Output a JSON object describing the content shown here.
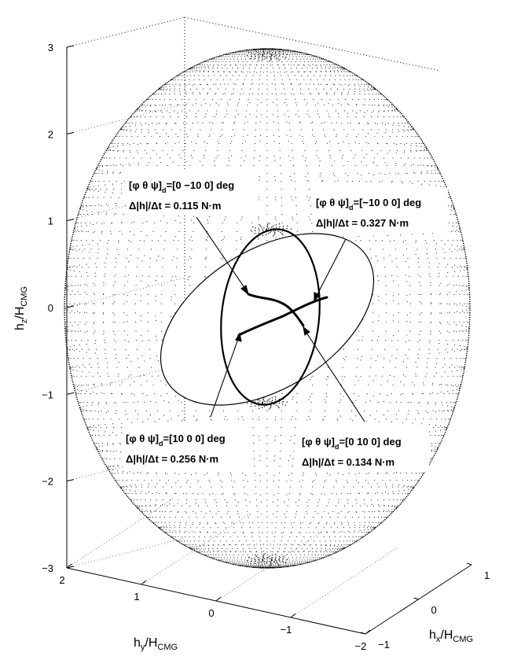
{
  "chart_data": {
    "type": "scatter",
    "projection": "3d",
    "grid": true,
    "axes": {
      "x": {
        "label": "h_x/H_CMG",
        "ticks": [
          "1",
          "0",
          "−1"
        ],
        "range": [
          -1,
          1
        ]
      },
      "y": {
        "label": "h_y/H_CMG",
        "ticks": [
          "2",
          "1",
          "0",
          "−1",
          "−2"
        ],
        "range": [
          -2,
          2
        ]
      },
      "z": {
        "label": "h_z/H_CMG",
        "ticks": [
          "3",
          "2",
          "1",
          "0",
          "−1",
          "−2",
          "−3"
        ],
        "range": [
          -3,
          3
        ]
      }
    },
    "surface": {
      "kind": "CMG angular momentum envelope (dotted ellipsoid with internal singular surface)",
      "hz_extent": [
        -3,
        3
      ],
      "hy_extent": [
        -2,
        2
      ],
      "hx_extent": [
        -1,
        1
      ]
    },
    "trajectories": [
      {
        "d_prefix": "[φ θ ψ]",
        "d_sub": "d",
        "d_value": "=[0 −10 0] deg",
        "rate_prefix": "Δ|h|/Δt = ",
        "rate_value": "0.115 N·m"
      },
      {
        "d_prefix": "[φ θ ψ]",
        "d_sub": "d",
        "d_value": "=[−10 0 0] deg",
        "rate_prefix": "Δ|h|/Δt = ",
        "rate_value": "0.327 N·m"
      },
      {
        "d_prefix": "[φ θ ψ]",
        "d_sub": "d",
        "d_value": "=[10 0 0] deg",
        "rate_prefix": "Δ|h|/Δt = ",
        "rate_value": "0.256 N·m"
      },
      {
        "d_prefix": "[φ θ ψ]",
        "d_sub": "d",
        "d_value": "=[0 10 0] deg",
        "rate_prefix": "Δ|h|/Δt = ",
        "rate_value": "0.134 N·m"
      }
    ]
  },
  "labels": {
    "z_main": "h",
    "z_sub": "z",
    "y_main": "h",
    "y_sub": "y",
    "x_main": "h",
    "x_sub": "x",
    "den_main": "/H",
    "den_sub": "CMG"
  },
  "colors": {
    "ink": "#000000",
    "grid": "#444444",
    "bg": "#ffffff"
  }
}
